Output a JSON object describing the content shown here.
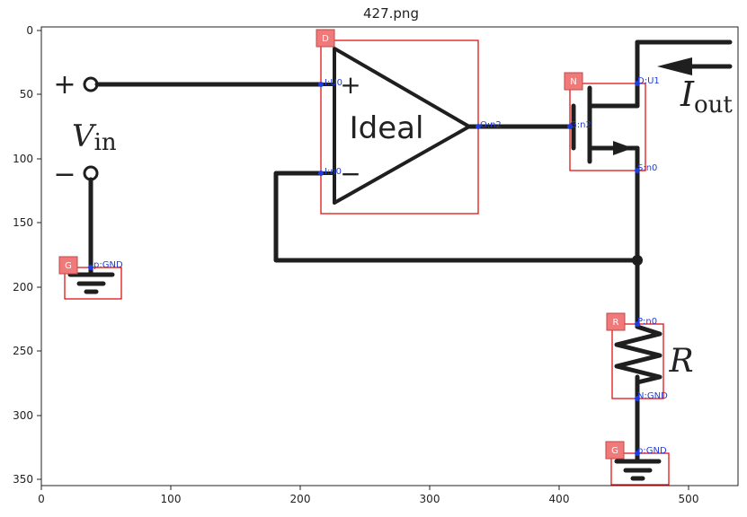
{
  "figure": {
    "title": "427.png",
    "x_ticks": [
      "0",
      "100",
      "200",
      "300",
      "400",
      "500"
    ],
    "y_ticks": [
      "0",
      "50",
      "100",
      "150",
      "200",
      "250",
      "300",
      "350"
    ]
  },
  "circuit": {
    "vin_label": "V",
    "vin_sub": "in",
    "plus": "+",
    "minus": "−",
    "opamp_text": "Ideal",
    "iout_label": "I",
    "iout_sub": "out",
    "r_label": "R"
  },
  "components": [
    {
      "tag": "D",
      "kind": "opamp"
    },
    {
      "tag": "N",
      "kind": "nmos"
    },
    {
      "tag": "R",
      "kind": "resistor"
    },
    {
      "tag": "G",
      "kind": "ground-left"
    },
    {
      "tag": "G",
      "kind": "ground-right"
    }
  ],
  "pins": {
    "opamp_in_pos": "I:U0",
    "opamp_in_neg": "I:n0",
    "opamp_out": "O:n2",
    "nmos_drain": "D:U1",
    "nmos_gate": "G:n2",
    "nmos_source": "S:n0",
    "res_top": "P:n0",
    "res_bottom": "N:GND",
    "gnd_left": "p:GND",
    "gnd_right": "p:GND"
  },
  "colors": {
    "box": "#e00000",
    "tag": "#f07a7a",
    "pin": "#1f3de0",
    "wire": "#1f1f1f"
  }
}
